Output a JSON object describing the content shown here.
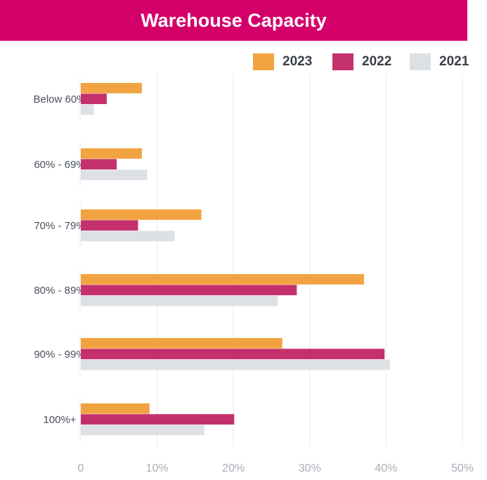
{
  "chart_data": {
    "type": "bar",
    "orientation": "horizontal",
    "title": "Warehouse Capacity",
    "categories": [
      "Below 60%",
      "60% - 69%",
      "70% - 79%",
      "80% - 89%",
      "90% - 99%",
      "100%+"
    ],
    "series": [
      {
        "name": "2023",
        "color": "#F2A341",
        "values": [
          8.0,
          8.0,
          15.8,
          37.1,
          26.4,
          9.0
        ]
      },
      {
        "name": "2022",
        "color": "#C4306C",
        "values": [
          3.4,
          4.7,
          7.5,
          28.3,
          39.8,
          20.1
        ]
      },
      {
        "name": "2021",
        "color": "#DDE0E5",
        "values": [
          1.7,
          8.7,
          12.3,
          25.8,
          40.5,
          16.2
        ]
      }
    ],
    "xlim": [
      0,
      50
    ],
    "xticks": [
      "0",
      "10%",
      "20%",
      "30%",
      "40%",
      "50%"
    ],
    "grid": true,
    "legend": "top-right",
    "title_bg": "#D4006A"
  }
}
